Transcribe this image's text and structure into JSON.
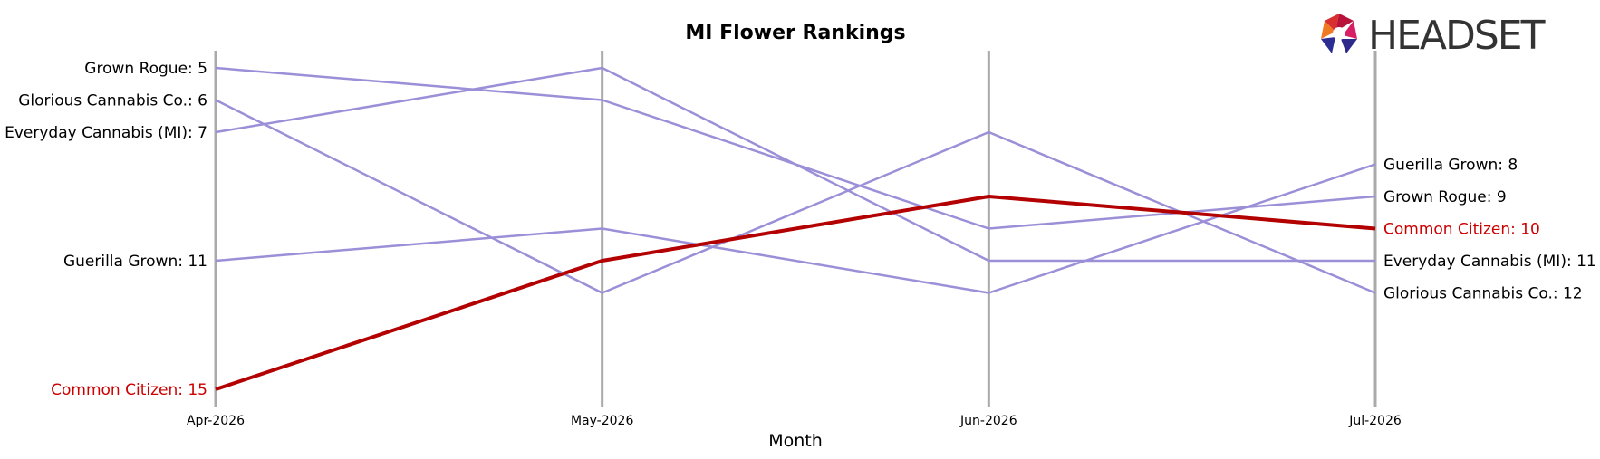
{
  "chart_data": {
    "type": "line",
    "title": "MI Flower Rankings",
    "xlabel": "Month",
    "ylabel": "",
    "categories": [
      "Apr-2026",
      "May-2026",
      "Jun-2026",
      "Jul-2026"
    ],
    "y_axis_inverted": true,
    "ylim": [
      16,
      4
    ],
    "grid": false,
    "series": [
      {
        "name": "Grown Rogue",
        "values": [
          5,
          6,
          10,
          9
        ],
        "color": "#9b8fd8",
        "highlight": false
      },
      {
        "name": "Glorious Cannabis Co.",
        "values": [
          6,
          12,
          7,
          12
        ],
        "color": "#9b8fd8",
        "highlight": false
      },
      {
        "name": "Everyday Cannabis (MI)",
        "values": [
          7,
          5,
          11,
          11
        ],
        "color": "#9b8fd8",
        "highlight": false
      },
      {
        "name": "Guerilla Grown",
        "values": [
          11,
          10,
          12,
          8
        ],
        "color": "#9b8fd8",
        "highlight": false
      },
      {
        "name": "Common Citizen",
        "values": [
          15,
          11,
          9,
          10
        ],
        "color": "#b30000",
        "highlight": true
      }
    ],
    "start_labels": [
      {
        "text": "Grown Rogue: 5",
        "series": 0
      },
      {
        "text": "Glorious Cannabis Co.: 6",
        "series": 1
      },
      {
        "text": "Everyday Cannabis (MI): 7",
        "series": 2
      },
      {
        "text": "Guerilla Grown: 11",
        "series": 3
      },
      {
        "text": "Common Citizen: 15",
        "series": 4
      }
    ],
    "end_labels": [
      {
        "text": "Guerilla Grown: 8",
        "series": 3
      },
      {
        "text": "Grown Rogue: 9",
        "series": 0
      },
      {
        "text": "Common Citizen: 10",
        "series": 4
      },
      {
        "text": "Everyday Cannabis (MI): 11",
        "series": 2
      },
      {
        "text": "Glorious Cannabis Co.: 12",
        "series": 1
      }
    ],
    "axis_line_color": "#aaaaaa"
  },
  "logo": {
    "text": "HEADSET",
    "name": "headset-logo"
  }
}
